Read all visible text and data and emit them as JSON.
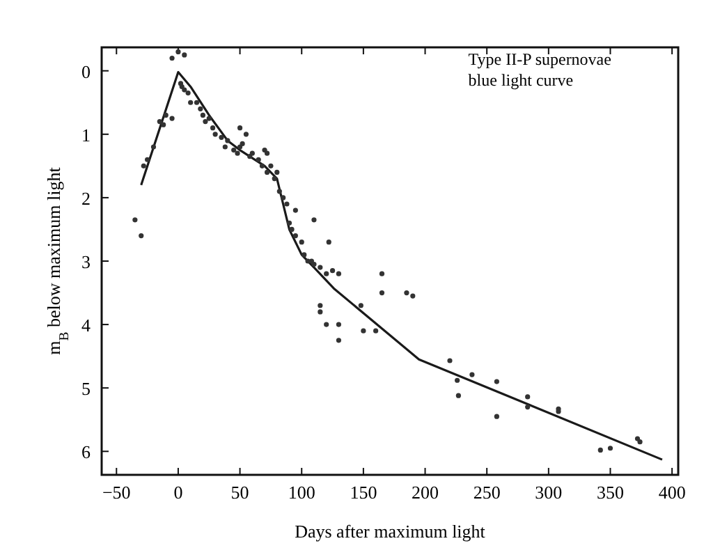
{
  "chart_data": {
    "type": "scatter",
    "xlabel": "Days after maximum light",
    "ylabel": "m$_{B}$ below maximum light",
    "annotations": [
      "Type II-P supernovae\nblue light curve"
    ],
    "xlim": [
      -62,
      405
    ],
    "ylim": [
      6.37,
      -0.37
    ],
    "xticks": [
      -50,
      0,
      50,
      100,
      150,
      200,
      250,
      300,
      350,
      400
    ],
    "yticks": [
      0,
      1,
      2,
      3,
      4,
      5,
      6
    ],
    "series": [
      {
        "type": "line",
        "color": "#1a1a1a",
        "x": [
          -30,
          0,
          10,
          25,
          40,
          50,
          70,
          80,
          90,
          100,
          110,
          126,
          195,
          392
        ],
        "values": [
          1.8,
          0.02,
          0.25,
          0.7,
          1.1,
          1.25,
          1.5,
          1.7,
          2.5,
          2.9,
          3.1,
          3.43,
          4.55,
          6.13
        ]
      },
      {
        "marker": "circle",
        "color": "#333333",
        "x": [
          0,
          5,
          -5,
          2,
          5,
          8,
          3,
          -10,
          -15,
          -12,
          -20,
          -25,
          -28,
          -5,
          -35,
          -30,
          10,
          15,
          18,
          20,
          22,
          25,
          28,
          30,
          35,
          38,
          40,
          45,
          48,
          50,
          52,
          55,
          58,
          60,
          65,
          68,
          70,
          72,
          75,
          78,
          80,
          82,
          85,
          88,
          90,
          92,
          95,
          100,
          102,
          105,
          108,
          110,
          115,
          120,
          125,
          130,
          95,
          110,
          122,
          115,
          115,
          120,
          130,
          130,
          148,
          150,
          160,
          165,
          165,
          185,
          190,
          50,
          72,
          220,
          226,
          227,
          238,
          258,
          258,
          283,
          283,
          308,
          308,
          342,
          350,
          372,
          374
        ],
        "values": [
          -0.3,
          -0.25,
          -0.2,
          0.2,
          0.3,
          0.35,
          0.25,
          0.7,
          0.8,
          0.85,
          1.2,
          1.4,
          1.5,
          0.75,
          2.35,
          2.6,
          0.5,
          0.5,
          0.6,
          0.7,
          0.8,
          0.75,
          0.9,
          1.0,
          1.05,
          1.2,
          1.1,
          1.25,
          1.3,
          1.2,
          1.15,
          1.0,
          1.35,
          1.3,
          1.4,
          1.5,
          1.25,
          1.6,
          1.5,
          1.7,
          1.6,
          1.9,
          2.0,
          2.1,
          2.4,
          2.5,
          2.6,
          2.7,
          2.9,
          3.0,
          3.0,
          3.05,
          3.1,
          3.2,
          3.15,
          3.2,
          2.2,
          2.35,
          2.7,
          3.7,
          3.8,
          4.0,
          4.0,
          4.25,
          3.7,
          4.1,
          4.1,
          3.2,
          3.5,
          3.5,
          3.55,
          0.9,
          1.3,
          4.57,
          4.88,
          5.12,
          4.79,
          4.9,
          5.45,
          5.14,
          5.3,
          5.33,
          5.37,
          5.98,
          5.95,
          5.8,
          5.85
        ]
      }
    ]
  }
}
